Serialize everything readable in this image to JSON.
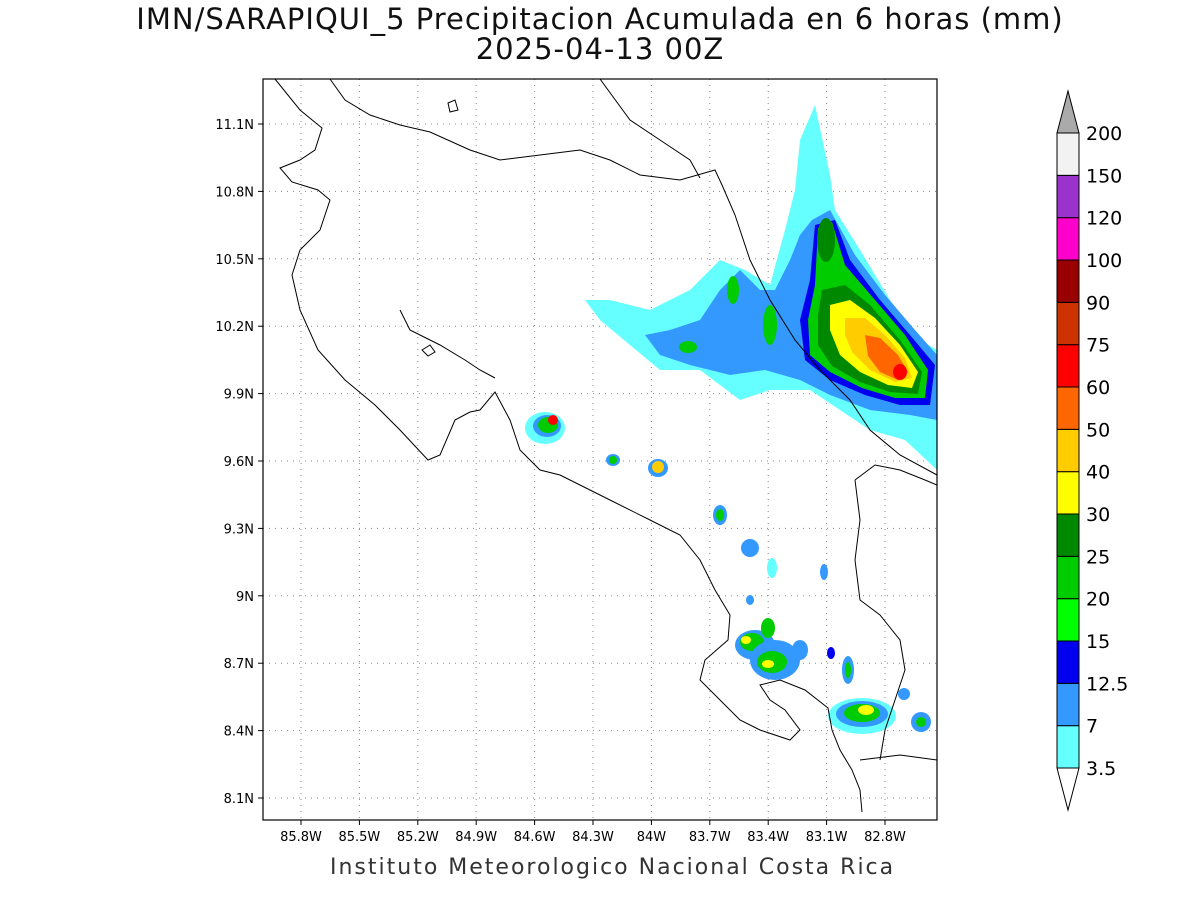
{
  "title": {
    "line1": "IMN/SARAPIQUI_5 Precipitacion Acumulada en 6 horas (mm)",
    "line2": "2025-04-13 00Z"
  },
  "footer": "Instituto Meteorologico Nacional Costa Rica",
  "map": {
    "lon_ticks": [
      "85.8W",
      "85.5W",
      "85.2W",
      "84.9W",
      "84.6W",
      "84.3W",
      "84W",
      "83.7W",
      "83.4W",
      "83.1W",
      "82.8W"
    ],
    "lat_ticks": [
      "11.1N",
      "10.8N",
      "10.5N",
      "10.2N",
      "9.9N",
      "9.6N",
      "9.3N",
      "9N",
      "8.7N",
      "8.4N",
      "8.1N"
    ],
    "grid": true,
    "grid_style": "dotted"
  },
  "colorbar": {
    "labels": [
      "3.5",
      "7",
      "12.5",
      "15",
      "20",
      "25",
      "30",
      "40",
      "50",
      "60",
      "75",
      "90",
      "100",
      "120",
      "150",
      "200"
    ],
    "colors": [
      "#66ffff",
      "#3399ff",
      "#0000ee",
      "#00ff00",
      "#00cc00",
      "#008800",
      "#ffff00",
      "#ffcc00",
      "#ff6600",
      "#ff0000",
      "#cc3300",
      "#990000",
      "#ff00cc",
      "#9933cc",
      "#f2f2f2"
    ],
    "over_color": "#aaaaaa",
    "under_color": "#ffffff"
  }
}
